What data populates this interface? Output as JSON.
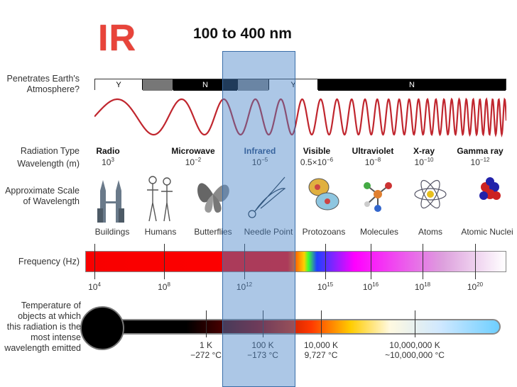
{
  "header": {
    "ir_title": "IR",
    "range_title": "100 to 400 nm"
  },
  "rows": {
    "penetrates": [
      "Penetrates Earth's",
      "Atmosphere?"
    ],
    "radiation_type": "Radiation Type",
    "wavelength": "Wavelength (m)",
    "scale": [
      "Approximate Scale",
      "of Wavelength"
    ],
    "frequency": "Frequency (Hz)",
    "temperature": [
      "Temperature of",
      "objects at which",
      "this radiation is the",
      "most intense",
      "wavelength emitted"
    ]
  },
  "atmosphere_bar": {
    "segments": [
      "Y",
      "N",
      "Y",
      "N"
    ]
  },
  "radiation_types": [
    {
      "name": "Radio",
      "wl_base": "10",
      "wl_exp": "3"
    },
    {
      "name": "Microwave",
      "wl_base": "10",
      "wl_exp": "−2"
    },
    {
      "name": "Infrared",
      "wl_base": "10",
      "wl_exp": "−5"
    },
    {
      "name": "Visible",
      "wl_base": "0.5×10",
      "wl_exp": "−6"
    },
    {
      "name": "Ultraviolet",
      "wl_base": "10",
      "wl_exp": "−8"
    },
    {
      "name": "X-ray",
      "wl_base": "10",
      "wl_exp": "−10"
    },
    {
      "name": "Gamma ray",
      "wl_base": "10",
      "wl_exp": "−12"
    }
  ],
  "scale_objects": [
    "Buildings",
    "Humans",
    "Butterflies",
    "Needle Point",
    "Protozoans",
    "Molecules",
    "Atoms",
    "Atomic Nuclei"
  ],
  "frequency_ticks": [
    {
      "base": "10",
      "exp": "4"
    },
    {
      "base": "10",
      "exp": "8"
    },
    {
      "base": "10",
      "exp": "12"
    },
    {
      "base": "10",
      "exp": "15"
    },
    {
      "base": "10",
      "exp": "16"
    },
    {
      "base": "10",
      "exp": "18"
    },
    {
      "base": "10",
      "exp": "20"
    }
  ],
  "temperatures": [
    {
      "k": "1 K",
      "c": "−272 °C"
    },
    {
      "k": "100 K",
      "c": "−173 °C"
    },
    {
      "k": "10,000 K",
      "c": "9,727 °C"
    },
    {
      "k": "10,000,000 K",
      "c": "~10,000,000 °C"
    }
  ],
  "colors": {
    "ir_title": "#e8443a",
    "wave": "#c0262e",
    "ir_band": "#4682c8"
  }
}
